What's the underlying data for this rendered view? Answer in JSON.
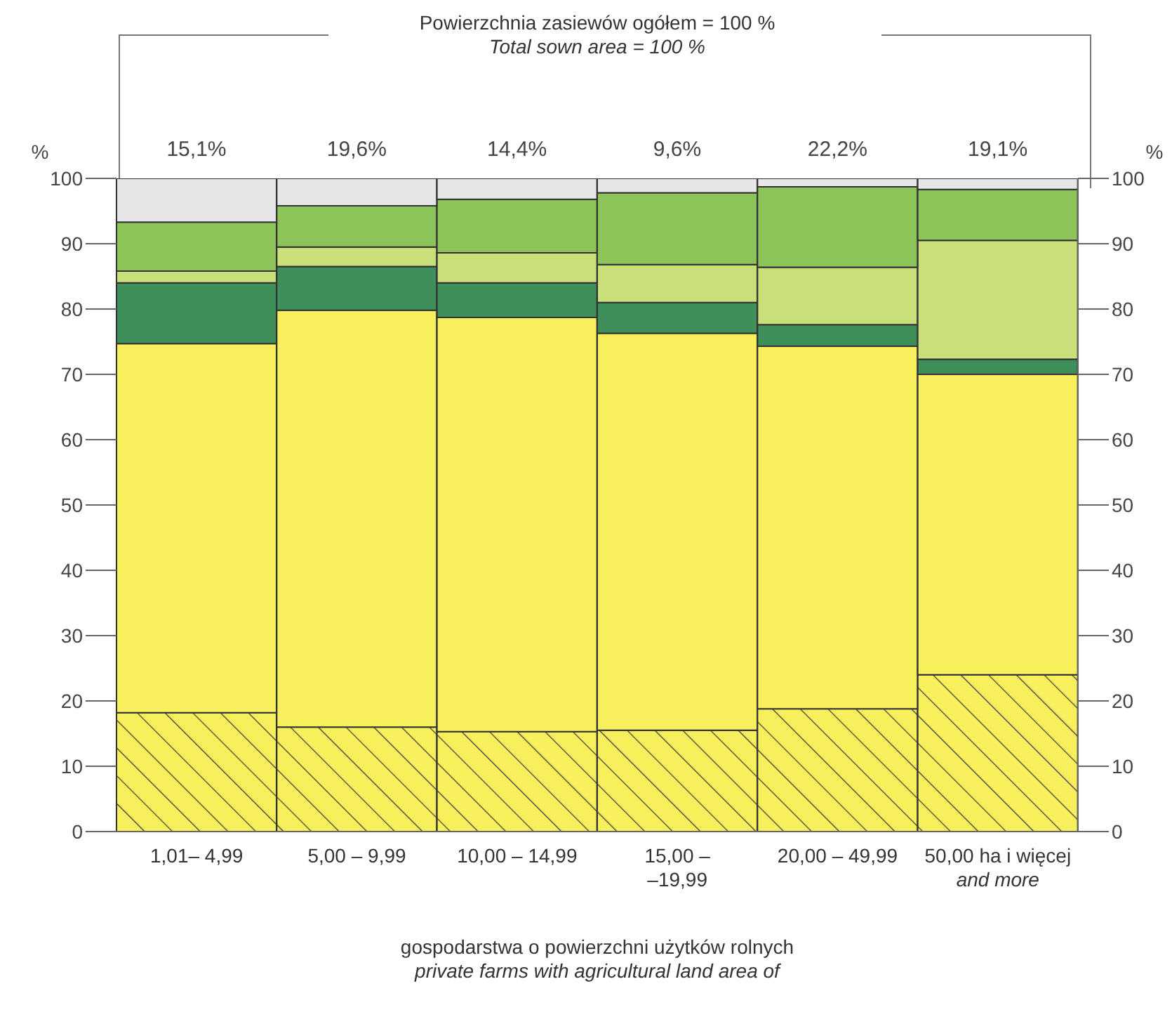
{
  "chart_data": {
    "type": "bar",
    "stacked": true,
    "title": "Powierzchnia zasiewów ogółem = 100 %",
    "subtitle": "Total sown area = 100 %",
    "xlabel": "gospodarstwa o powierzchni użytków rolnych\nprivate farms with agricultural land area of",
    "ylabel": "%",
    "y2label": "%",
    "categories": [
      "1,01– 4,99",
      "5,00 – 9,99",
      "10,00 – 14,99",
      "15,00 –\n–19,99",
      "20,00 – 49,99",
      "50,00 ha i więcej\nand more"
    ],
    "series": [
      {
        "color": "#f7ef5c",
        "values": [
          18.2,
          16,
          15.3,
          15.5,
          18.8,
          24
        ]
      },
      {
        "color": "#f7ef5c",
        "values": [
          56.5,
          63.8,
          63.4,
          60.8,
          55.5,
          46
        ]
      },
      {
        "color": "#3f8f5a",
        "values": [
          9.3,
          6.7,
          5.3,
          4.7,
          3.3,
          2.3
        ]
      },
      {
        "color": "#c9e07a",
        "values": [
          1.8,
          3,
          4.6,
          5.8,
          8.8,
          18.2
        ]
      },
      {
        "color": "#8cc45a",
        "values": [
          7.5,
          6.3,
          8.2,
          11,
          12.3,
          7.8
        ]
      },
      {
        "color": "#e6e6e8",
        "values": [
          6.7,
          4.2,
          3.2,
          2.2,
          1.3,
          1.7
        ]
      }
    ],
    "annotations": [
      "15,1%",
      "19,6%",
      "14,4%",
      "9,6%",
      "22,2%",
      "19,1%"
    ],
    "ylim": [
      0,
      100
    ],
    "yticks": [
      0,
      10,
      20,
      30,
      40,
      50,
      60,
      70,
      80,
      90,
      100
    ],
    "y2lim": [
      0,
      100
    ],
    "y2ticks": [
      0,
      10,
      20,
      30,
      40,
      50,
      60,
      70,
      80,
      90,
      100
    ],
    "grid": false,
    "legend": false
  }
}
